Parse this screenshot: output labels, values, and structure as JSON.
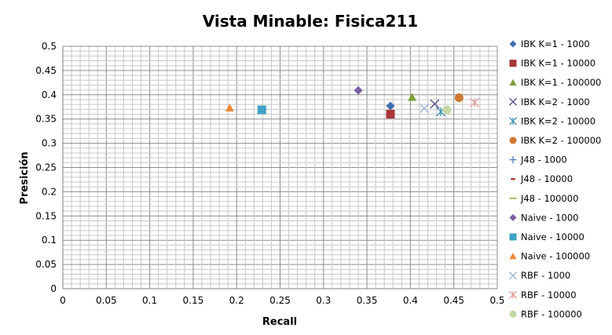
{
  "chart_data": {
    "type": "scatter",
    "title": "Vista Minable: Fisica211",
    "xlabel": "Recall",
    "ylabel": "Presición",
    "xlim": [
      0,
      0.5
    ],
    "ylim": [
      0,
      0.5
    ],
    "x_ticks": [
      "0",
      "0.05",
      "0.1",
      "0.15",
      "0.2",
      "0.25",
      "0.3",
      "0.35",
      "0.4",
      "0.45",
      "0.5"
    ],
    "y_ticks": [
      "0",
      "0.05",
      "0.1",
      "0.15",
      "0.2",
      "0.25",
      "0.3",
      "0.35",
      "0.4",
      "0.45",
      "0.5"
    ],
    "grid": true,
    "legend_position": "right",
    "series": [
      {
        "name": "IBK K=1 - 1000",
        "marker": "diamond",
        "color": "#3f6eb2",
        "points": [
          [
            0.377,
            0.377
          ]
        ]
      },
      {
        "name": "IBK K=1 - 10000",
        "marker": "square",
        "color": "#a9373a",
        "points": [
          [
            0.377,
            0.36
          ]
        ]
      },
      {
        "name": "IBK K=1 - 100000",
        "marker": "triangle",
        "color": "#7a9e3a",
        "points": [
          [
            0.402,
            0.395
          ]
        ]
      },
      {
        "name": "IBK K=2 - 1000",
        "marker": "x",
        "color": "#5f4a8b",
        "points": [
          [
            0.428,
            0.381
          ]
        ]
      },
      {
        "name": "IBK K=2 - 10000",
        "marker": "asterisk",
        "color": "#3a93ad",
        "points": [
          [
            0.435,
            0.365
          ]
        ]
      },
      {
        "name": "IBK K=2 - 100000",
        "marker": "circle",
        "color": "#d0782e",
        "points": [
          [
            0.456,
            0.394
          ]
        ]
      },
      {
        "name": "J48 - 1000",
        "marker": "plus",
        "color": "#4a7bc0",
        "points": []
      },
      {
        "name": "J48 - 10000",
        "marker": "dash",
        "color": "#b03a36",
        "points": []
      },
      {
        "name": "J48 - 100000",
        "marker": "line",
        "color": "#93b04a",
        "points": []
      },
      {
        "name": "Naive - 1000",
        "marker": "diamond",
        "color": "#7b5ea2",
        "points": [
          [
            0.34,
            0.409
          ]
        ]
      },
      {
        "name": "Naive - 10000",
        "marker": "square",
        "color": "#3ea2c4",
        "points": [
          [
            0.229,
            0.369
          ]
        ]
      },
      {
        "name": "Naive - 100000",
        "marker": "triangle",
        "color": "#f08a36",
        "points": [
          [
            0.192,
            0.373
          ]
        ]
      },
      {
        "name": "RBF - 1000",
        "marker": "x",
        "color": "#9db4dc",
        "points": [
          [
            0.416,
            0.372
          ]
        ]
      },
      {
        "name": "RBF - 10000",
        "marker": "asterisk",
        "color": "#e39b9b",
        "points": [
          [
            0.474,
            0.384
          ]
        ]
      },
      {
        "name": "RBF - 100000",
        "marker": "circle",
        "color": "#c3d8a4",
        "points": [
          [
            0.442,
            0.369
          ]
        ]
      }
    ]
  }
}
